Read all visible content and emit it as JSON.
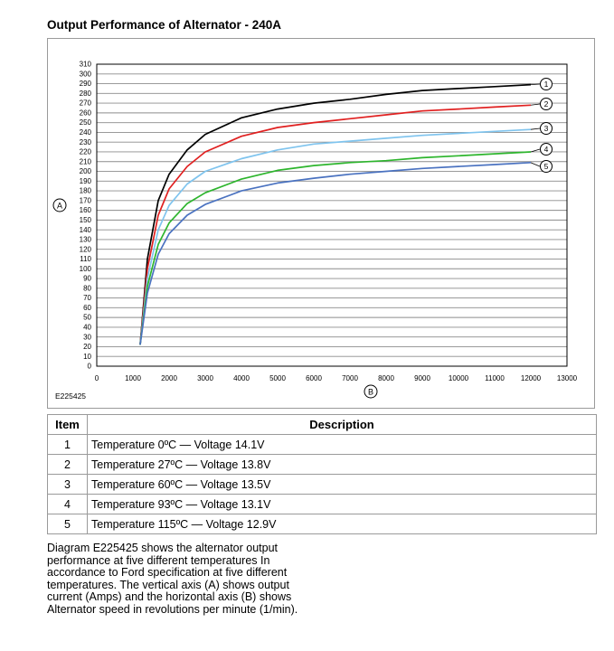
{
  "title": "Output Performance of Alternator - 240A",
  "figure_code": "E225425",
  "callouts": {
    "a": "A",
    "b": "B"
  },
  "chart_data": {
    "type": "line",
    "x_ticks": [
      0,
      1000,
      2000,
      3000,
      4000,
      5000,
      6000,
      7000,
      8000,
      9000,
      10000,
      11000,
      12000,
      13000
    ],
    "y_ticks": [
      0,
      10,
      20,
      30,
      40,
      50,
      60,
      70,
      80,
      90,
      100,
      110,
      120,
      130,
      140,
      150,
      160,
      170,
      180,
      190,
      200,
      210,
      220,
      230,
      240,
      250,
      260,
      270,
      280,
      290,
      300,
      310
    ],
    "xlim": [
      0,
      13000
    ],
    "ylim": [
      0,
      310
    ],
    "grid": "horizontal",
    "series": [
      {
        "name": "1",
        "color": "#000000",
        "x": [
          1200,
          1400,
          1700,
          2000,
          2500,
          3000,
          4000,
          5000,
          6000,
          7000,
          8000,
          9000,
          10000,
          11000,
          12000
        ],
        "y": [
          22,
          110,
          170,
          197,
          222,
          238,
          255,
          264,
          270,
          274,
          279,
          283,
          285,
          287,
          289
        ]
      },
      {
        "name": "2",
        "color": "#e02020",
        "x": [
          1200,
          1400,
          1700,
          2000,
          2500,
          3000,
          4000,
          5000,
          6000,
          7000,
          8000,
          9000,
          10000,
          11000,
          12000
        ],
        "y": [
          22,
          100,
          155,
          182,
          205,
          220,
          236,
          245,
          250,
          254,
          258,
          262,
          264,
          266,
          268
        ]
      },
      {
        "name": "3",
        "color": "#7fc4ee",
        "x": [
          1200,
          1400,
          1700,
          2000,
          2500,
          3000,
          4000,
          5000,
          6000,
          7000,
          8000,
          9000,
          10000,
          11000,
          12000
        ],
        "y": [
          22,
          90,
          140,
          165,
          187,
          200,
          213,
          222,
          228,
          231,
          234,
          237,
          239,
          241,
          243
        ]
      },
      {
        "name": "4",
        "color": "#2db52d",
        "x": [
          1200,
          1400,
          1700,
          2000,
          2500,
          3000,
          4000,
          5000,
          6000,
          7000,
          8000,
          9000,
          10000,
          11000,
          12000
        ],
        "y": [
          22,
          82,
          125,
          147,
          167,
          178,
          192,
          201,
          206,
          209,
          211,
          214,
          216,
          218,
          220
        ]
      },
      {
        "name": "5",
        "color": "#4a72c0",
        "x": [
          1200,
          1400,
          1700,
          2000,
          2500,
          3000,
          4000,
          5000,
          6000,
          7000,
          8000,
          9000,
          10000,
          11000,
          12000
        ],
        "y": [
          22,
          75,
          115,
          136,
          155,
          166,
          180,
          188,
          193,
          197,
          200,
          203,
          205,
          207,
          209
        ]
      }
    ]
  },
  "table": {
    "headers": [
      "Item",
      "Description"
    ],
    "rows": [
      {
        "item": "1",
        "desc": "Temperature 0ºC — Voltage 14.1V"
      },
      {
        "item": "2",
        "desc": "Temperature 27ºC — Voltage 13.8V"
      },
      {
        "item": "3",
        "desc": "Temperature 60ºC — Voltage 13.5V"
      },
      {
        "item": "4",
        "desc": "Temperature 93ºC — Voltage 13.1V"
      },
      {
        "item": "5",
        "desc": "Temperature 115ºC — Voltage 12.9V"
      }
    ]
  },
  "description": "Diagram E225425 shows the alternator output performance at five different temperatures In accordance to Ford specification at five different temperatures. The vertical axis (A) shows output current (Amps) and the horizontal axis (B) shows Alternator speed in revolutions per minute (1/min)."
}
